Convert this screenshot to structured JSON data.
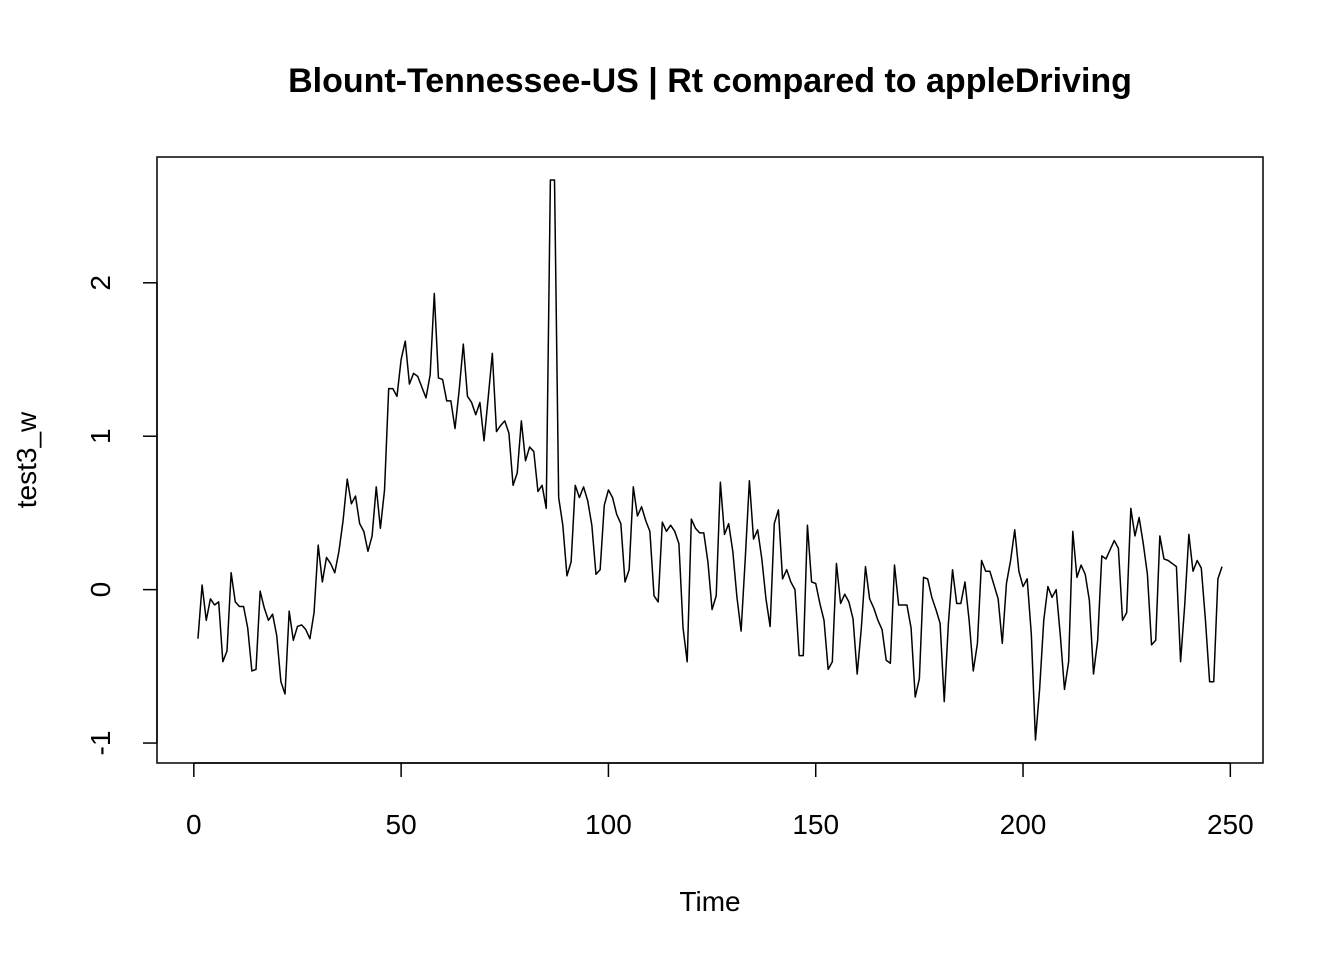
{
  "chart_data": {
    "type": "line",
    "title": "Blount-Tennessee-US | Rt compared to appleDriving",
    "x_label": "Time",
    "y_label": "test3_w",
    "color": "#000000",
    "xlim": [
      -8.88,
      257.88
    ],
    "ylim": [
      -1.13,
      2.82
    ],
    "xticks": [
      0,
      50,
      100,
      150,
      200,
      250
    ],
    "yticks": [
      -1,
      0,
      1,
      2
    ],
    "grid": false,
    "x": [
      1,
      2,
      3,
      4,
      5,
      6,
      7,
      8,
      9,
      10,
      11,
      12,
      13,
      14,
      15,
      16,
      17,
      18,
      19,
      20,
      21,
      22,
      23,
      24,
      25,
      26,
      27,
      28,
      29,
      30,
      31,
      32,
      33,
      34,
      35,
      36,
      37,
      38,
      39,
      40,
      41,
      42,
      43,
      44,
      45,
      46,
      47,
      48,
      49,
      50,
      51,
      52,
      53,
      54,
      55,
      56,
      57,
      58,
      59,
      60,
      61,
      62,
      63,
      64,
      65,
      66,
      67,
      68,
      69,
      70,
      71,
      72,
      73,
      74,
      75,
      76,
      77,
      78,
      79,
      80,
      81,
      82,
      83,
      84,
      85,
      86,
      87,
      88,
      89,
      90,
      91,
      92,
      93,
      94,
      95,
      96,
      97,
      98,
      99,
      100,
      101,
      102,
      103,
      104,
      105,
      106,
      107,
      108,
      109,
      110,
      111,
      112,
      113,
      114,
      115,
      116,
      117,
      118,
      119,
      120,
      121,
      122,
      123,
      124,
      125,
      126,
      127,
      128,
      129,
      130,
      131,
      132,
      133,
      134,
      135,
      136,
      137,
      138,
      139,
      140,
      141,
      142,
      143,
      144,
      145,
      146,
      147,
      148,
      149,
      150,
      151,
      152,
      153,
      154,
      155,
      156,
      157,
      158,
      159,
      160,
      161,
      162,
      163,
      164,
      165,
      166,
      167,
      168,
      169,
      170,
      171,
      172,
      173,
      174,
      175,
      176,
      177,
      178,
      179,
      180,
      181,
      182,
      183,
      184,
      185,
      186,
      187,
      188,
      189,
      190,
      191,
      192,
      193,
      194,
      195,
      196,
      197,
      198,
      199,
      200,
      201,
      202,
      203,
      204,
      205,
      206,
      207,
      208,
      209,
      210,
      211,
      212,
      213,
      214,
      215,
      216,
      217,
      218,
      219,
      220,
      221,
      222,
      223,
      224,
      225,
      226,
      227,
      228,
      229,
      230,
      231,
      232,
      233,
      234,
      235,
      236,
      237,
      238,
      239,
      240,
      241,
      242,
      243,
      244,
      245,
      246,
      247,
      248
    ],
    "values": [
      -0.32,
      0.03,
      -0.2,
      -0.06,
      -0.1,
      -0.08,
      -0.47,
      -0.4,
      0.11,
      -0.08,
      -0.11,
      -0.11,
      -0.25,
      -0.53,
      -0.52,
      -0.01,
      -0.12,
      -0.2,
      -0.16,
      -0.3,
      -0.6,
      -0.68,
      -0.14,
      -0.33,
      -0.24,
      -0.23,
      -0.26,
      -0.32,
      -0.15,
      0.29,
      0.05,
      0.21,
      0.17,
      0.11,
      0.25,
      0.45,
      0.72,
      0.56,
      0.61,
      0.43,
      0.38,
      0.25,
      0.35,
      0.67,
      0.4,
      0.65,
      1.31,
      1.31,
      1.26,
      1.5,
      1.62,
      1.34,
      1.41,
      1.39,
      1.32,
      1.25,
      1.4,
      1.93,
      1.38,
      1.37,
      1.23,
      1.23,
      1.05,
      1.3,
      1.6,
      1.26,
      1.22,
      1.14,
      1.22,
      0.97,
      1.25,
      1.54,
      1.03,
      1.07,
      1.1,
      1.02,
      0.68,
      0.76,
      1.1,
      0.84,
      0.93,
      0.9,
      0.64,
      0.68,
      0.53,
      2.67,
      2.67,
      0.6,
      0.42,
      0.09,
      0.18,
      0.68,
      0.6,
      0.67,
      0.58,
      0.42,
      0.1,
      0.13,
      0.55,
      0.65,
      0.6,
      0.49,
      0.43,
      0.05,
      0.13,
      0.67,
      0.48,
      0.54,
      0.45,
      0.38,
      -0.04,
      -0.08,
      0.44,
      0.38,
      0.42,
      0.38,
      0.3,
      -0.25,
      -0.47,
      0.46,
      0.4,
      0.37,
      0.37,
      0.18,
      -0.13,
      -0.04,
      0.7,
      0.36,
      0.43,
      0.25,
      -0.05,
      -0.27,
      0.2,
      0.71,
      0.33,
      0.39,
      0.2,
      -0.06,
      -0.24,
      0.43,
      0.52,
      0.07,
      0.13,
      0.05,
      0.0,
      -0.43,
      -0.43,
      0.42,
      0.05,
      0.04,
      -0.09,
      -0.2,
      -0.52,
      -0.47,
      0.17,
      -0.09,
      -0.03,
      -0.08,
      -0.19,
      -0.55,
      -0.25,
      0.15,
      -0.06,
      -0.12,
      -0.2,
      -0.26,
      -0.46,
      -0.48,
      0.16,
      -0.1,
      -0.1,
      -0.1,
      -0.25,
      -0.7,
      -0.58,
      0.08,
      0.07,
      -0.05,
      -0.13,
      -0.22,
      -0.73,
      -0.22,
      0.13,
      -0.09,
      -0.09,
      0.05,
      -0.2,
      -0.53,
      -0.35,
      0.19,
      0.12,
      0.12,
      0.03,
      -0.06,
      -0.35,
      0.04,
      0.19,
      0.39,
      0.12,
      0.02,
      0.07,
      -0.29,
      -0.98,
      -0.65,
      -0.2,
      0.02,
      -0.05,
      0.0,
      -0.3,
      -0.65,
      -0.47,
      0.38,
      0.08,
      0.16,
      0.1,
      -0.07,
      -0.55,
      -0.33,
      0.22,
      0.2,
      0.26,
      0.32,
      0.27,
      -0.2,
      -0.15,
      0.53,
      0.35,
      0.47,
      0.3,
      0.1,
      -0.36,
      -0.33,
      0.35,
      0.2,
      0.19,
      0.17,
      0.15,
      -0.47,
      -0.1,
      0.36,
      0.12,
      0.19,
      0.14,
      -0.2,
      -0.6,
      -0.6,
      0.07,
      0.15
    ]
  }
}
